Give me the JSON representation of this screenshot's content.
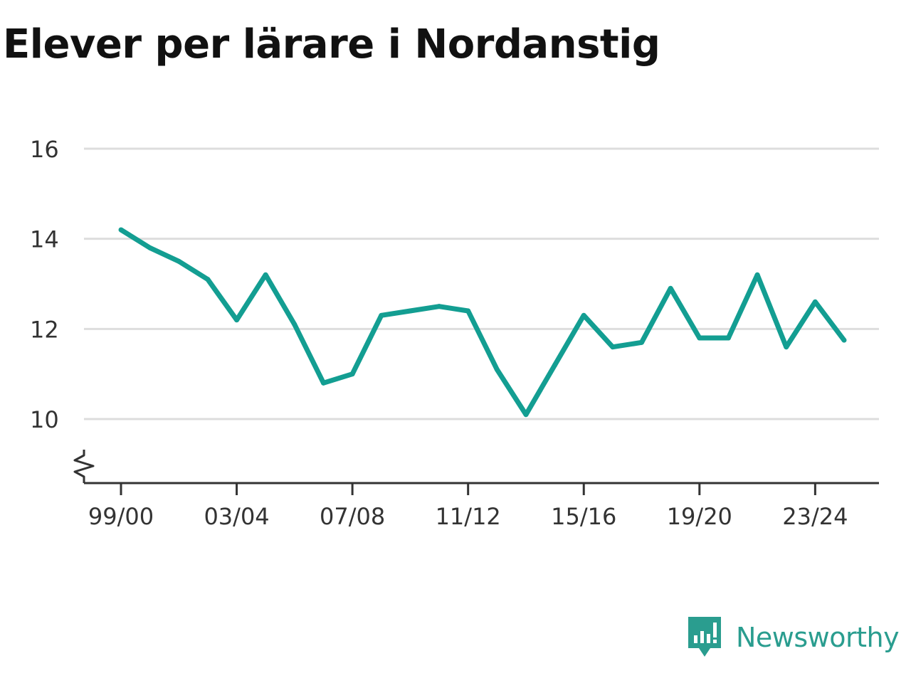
{
  "title": "Elever per lärare i Nordanstig",
  "brand": {
    "name": "Newsworthy",
    "icon": "newsworthy-logo-icon",
    "color": "#2a9d8f"
  },
  "chart_data": {
    "type": "line",
    "title": "Elever per lärare i Nordanstig",
    "xlabel": "",
    "ylabel": "",
    "x": [
      "99/00",
      "00/01",
      "01/02",
      "02/03",
      "03/04",
      "04/05",
      "05/06",
      "06/07",
      "07/08",
      "08/09",
      "09/10",
      "10/11",
      "11/12",
      "12/13",
      "13/14",
      "14/15",
      "15/16",
      "16/17",
      "17/18",
      "18/19",
      "19/20",
      "20/21",
      "21/22",
      "22/23",
      "23/24",
      "24/25"
    ],
    "x_tick_labels": [
      "99/00",
      "03/04",
      "07/08",
      "11/12",
      "15/16",
      "19/20",
      "23/24"
    ],
    "y_ticks": [
      10,
      12,
      14,
      16
    ],
    "ylim": [
      8.6,
      16
    ],
    "axis_break": true,
    "grid": true,
    "line_color": "#139e92",
    "series": [
      {
        "values": [
          14.2,
          13.8,
          13.5,
          13.1,
          12.2,
          13.2,
          12.1,
          10.8,
          11.0,
          12.3,
          12.4,
          12.5,
          12.4,
          11.1,
          10.1,
          11.2,
          12.3,
          11.6,
          11.7,
          12.9,
          11.8,
          11.8,
          13.2,
          11.6,
          12.6,
          11.75
        ]
      }
    ]
  }
}
